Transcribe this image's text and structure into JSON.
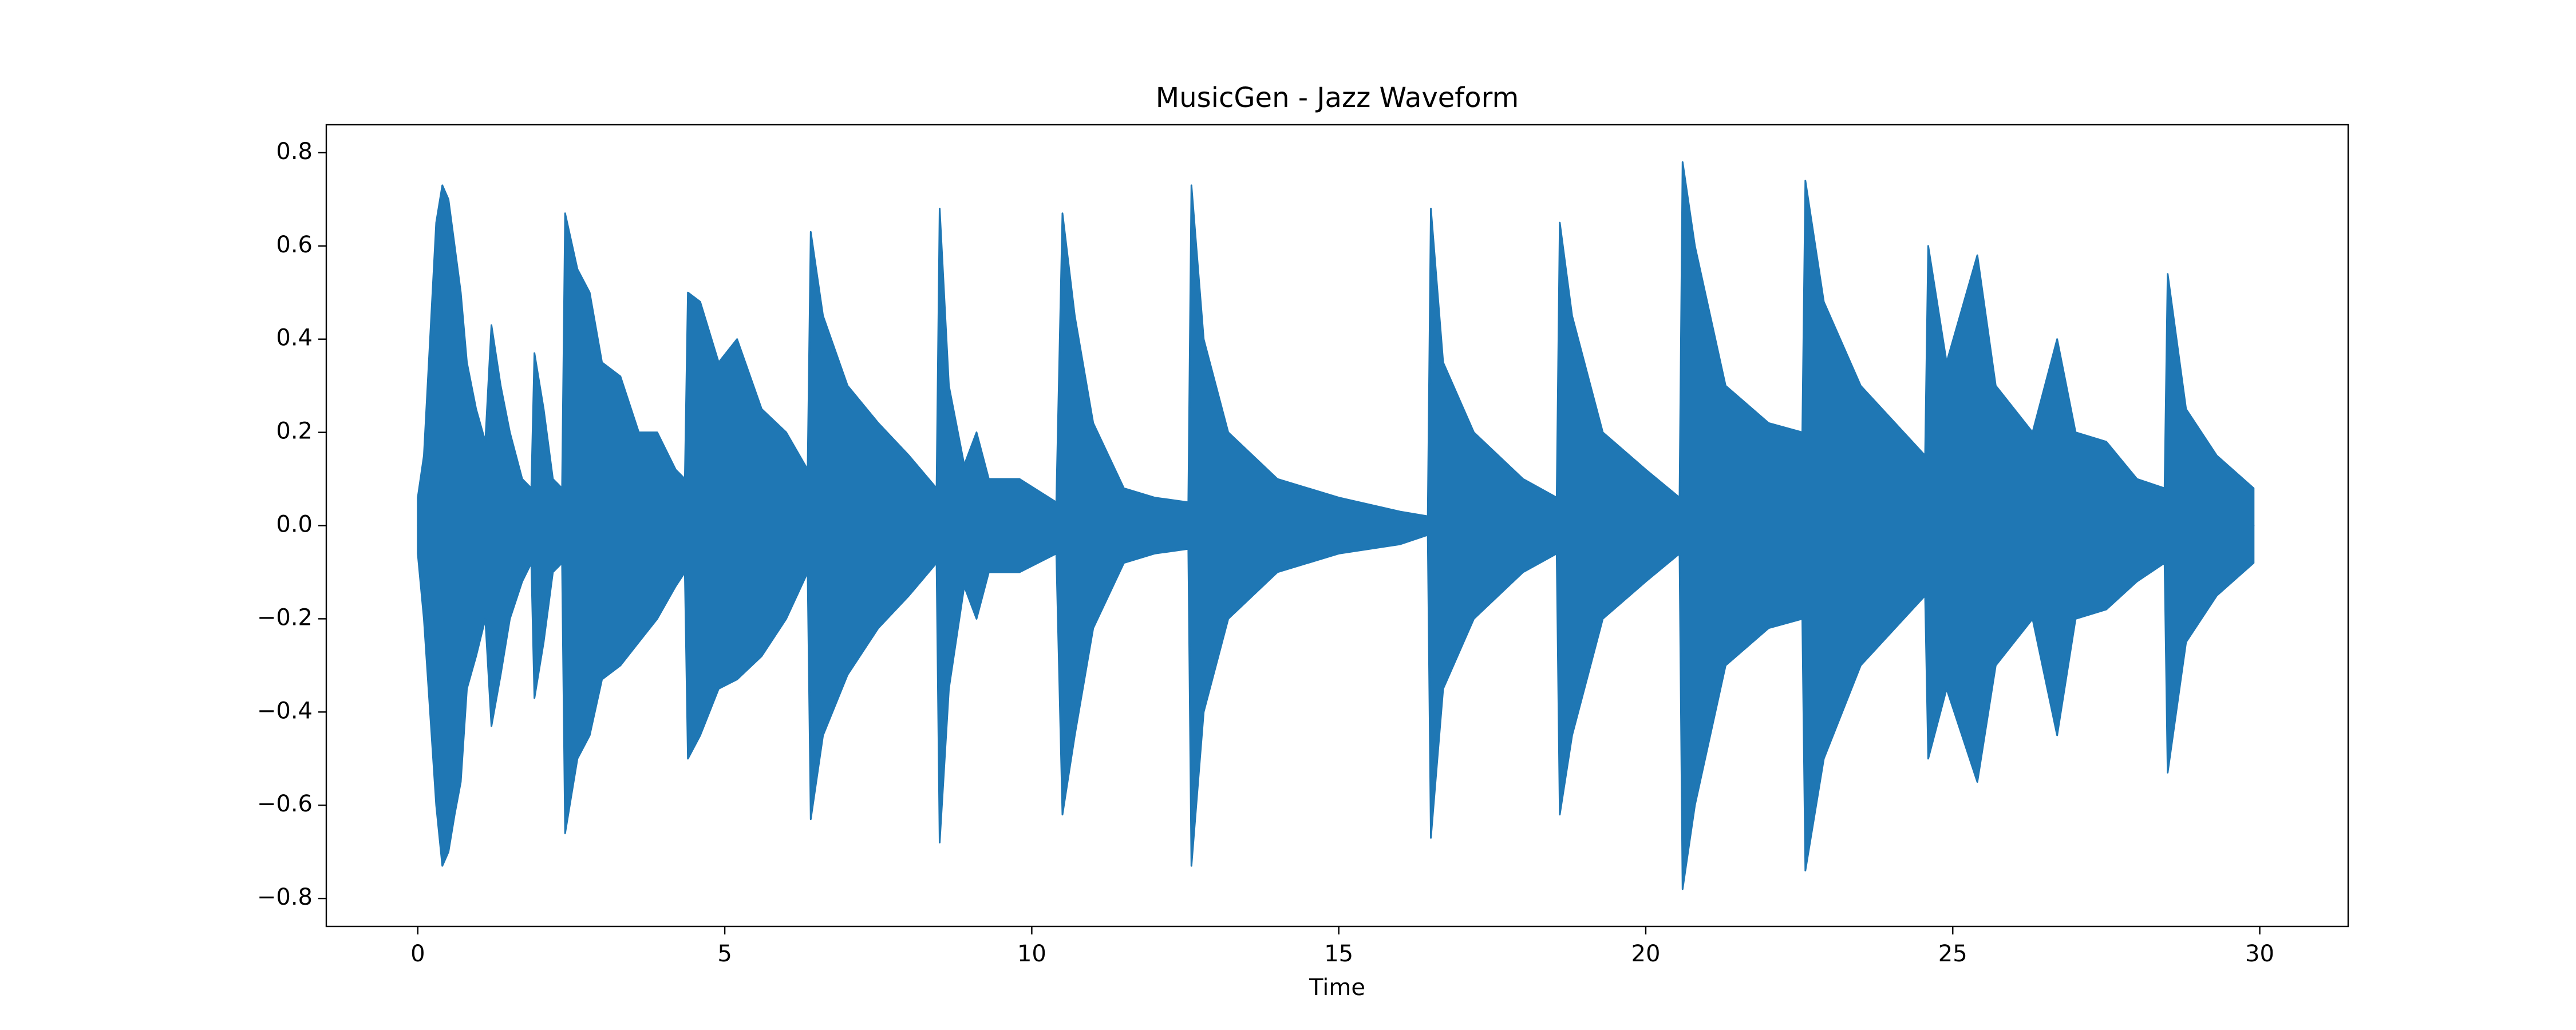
{
  "chart_data": {
    "type": "area",
    "title": "MusicGen - Jazz Waveform",
    "x_label": "Time",
    "x": [
      0,
      0.1,
      0.2,
      0.3,
      0.4,
      0.5,
      0.6,
      0.7,
      0.8,
      0.95,
      1.1,
      1.2,
      1.35,
      1.5,
      1.7,
      1.85,
      1.9,
      2.05,
      2.2,
      2.35,
      2.4,
      2.6,
      2.8,
      3.0,
      3.3,
      3.6,
      3.9,
      4.2,
      4.35,
      4.4,
      4.6,
      4.9,
      5.2,
      5.6,
      6.0,
      6.35,
      6.4,
      6.6,
      7.0,
      7.5,
      8.0,
      8.45,
      8.5,
      8.65,
      8.9,
      9.1,
      9.3,
      9.8,
      10.4,
      10.5,
      10.7,
      11.0,
      11.5,
      12.0,
      12.55,
      12.6,
      12.8,
      13.2,
      14.0,
      15.0,
      16.0,
      16.45,
      16.5,
      16.7,
      17.2,
      18.0,
      18.55,
      18.6,
      18.8,
      19.3,
      20.0,
      20.55,
      20.6,
      20.8,
      21.3,
      22.0,
      22.55,
      22.6,
      22.9,
      23.5,
      24.2,
      24.55,
      24.6,
      24.9,
      25.4,
      25.7,
      26.3,
      26.7,
      27.0,
      27.5,
      28.0,
      28.45,
      28.5,
      28.8,
      29.3,
      29.9
    ],
    "series": [
      {
        "color": "#1f77b4",
        "values": [
          0.06,
          0.15,
          0.4,
          0.65,
          0.73,
          0.7,
          0.6,
          0.5,
          0.35,
          0.25,
          0.18,
          0.43,
          0.3,
          0.2,
          0.1,
          0.08,
          0.37,
          0.25,
          0.1,
          0.08,
          0.67,
          0.55,
          0.5,
          0.35,
          0.32,
          0.2,
          0.2,
          0.12,
          0.1,
          0.5,
          0.48,
          0.35,
          0.4,
          0.25,
          0.2,
          0.12,
          0.63,
          0.45,
          0.3,
          0.22,
          0.15,
          0.08,
          0.68,
          0.3,
          0.13,
          0.2,
          0.1,
          0.1,
          0.05,
          0.67,
          0.45,
          0.22,
          0.08,
          0.06,
          0.05,
          0.73,
          0.4,
          0.2,
          0.1,
          0.06,
          0.03,
          0.02,
          0.68,
          0.35,
          0.2,
          0.1,
          0.06,
          0.65,
          0.45,
          0.2,
          0.12,
          0.06,
          0.78,
          0.6,
          0.3,
          0.22,
          0.2,
          0.74,
          0.48,
          0.3,
          0.2,
          0.15,
          0.6,
          0.35,
          0.58,
          0.3,
          0.2,
          0.4,
          0.2,
          0.18,
          0.1,
          0.08,
          0.54,
          0.25,
          0.15,
          0.08
        ]
      },
      {
        "color": "#1f77b4",
        "values": [
          -0.06,
          -0.2,
          -0.4,
          -0.6,
          -0.73,
          -0.7,
          -0.62,
          -0.55,
          -0.35,
          -0.28,
          -0.2,
          -0.43,
          -0.32,
          -0.2,
          -0.12,
          -0.08,
          -0.37,
          -0.25,
          -0.1,
          -0.08,
          -0.66,
          -0.5,
          -0.45,
          -0.33,
          -0.3,
          -0.25,
          -0.2,
          -0.13,
          -0.1,
          -0.5,
          -0.45,
          -0.35,
          -0.33,
          -0.28,
          -0.2,
          -0.1,
          -0.63,
          -0.45,
          -0.32,
          -0.22,
          -0.15,
          -0.08,
          -0.68,
          -0.35,
          -0.13,
          -0.2,
          -0.1,
          -0.1,
          -0.06,
          -0.62,
          -0.45,
          -0.22,
          -0.08,
          -0.06,
          -0.05,
          -0.73,
          -0.4,
          -0.2,
          -0.1,
          -0.06,
          -0.04,
          -0.02,
          -0.67,
          -0.35,
          -0.2,
          -0.1,
          -0.06,
          -0.62,
          -0.45,
          -0.2,
          -0.12,
          -0.06,
          -0.78,
          -0.6,
          -0.3,
          -0.22,
          -0.2,
          -0.74,
          -0.5,
          -0.3,
          -0.2,
          -0.15,
          -0.5,
          -0.35,
          -0.55,
          -0.3,
          -0.2,
          -0.45,
          -0.2,
          -0.18,
          -0.12,
          -0.08,
          -0.53,
          -0.25,
          -0.15,
          -0.08
        ]
      }
    ],
    "xlim": [
      -1.49,
      31.44
    ],
    "ylim": [
      -0.86,
      0.86
    ],
    "xticks": [
      0,
      5,
      10,
      15,
      20,
      25,
      30
    ],
    "yticks": [
      {
        "value": -0.8,
        "label": "−0.8"
      },
      {
        "value": -0.6,
        "label": "−0.6"
      },
      {
        "value": -0.4,
        "label": "−0.4"
      },
      {
        "value": -0.2,
        "label": "−0.2"
      },
      {
        "value": 0,
        "label": "0.0"
      },
      0.2,
      0.4,
      0.6,
      0.8
    ],
    "grid": false
  }
}
